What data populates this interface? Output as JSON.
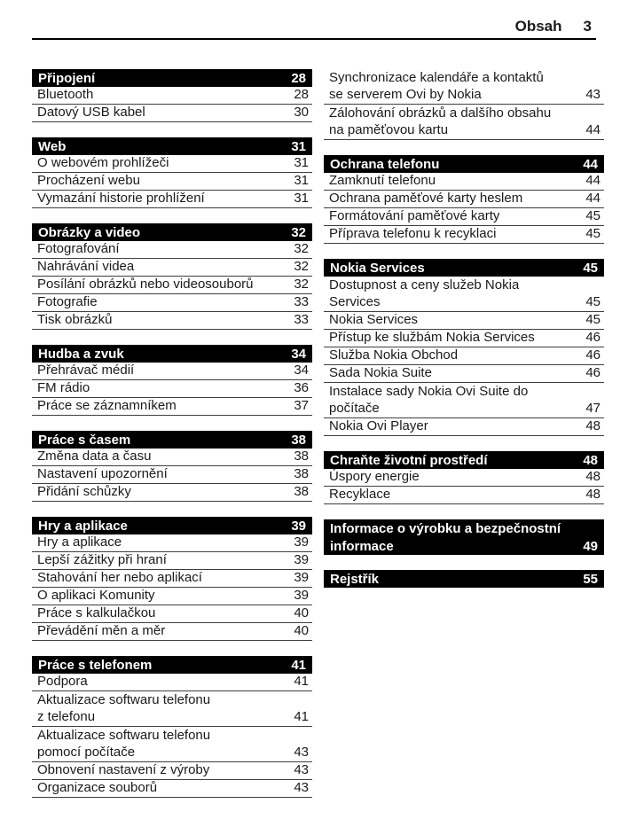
{
  "header": {
    "title": "Obsah",
    "page_number": "3"
  },
  "colors": {
    "bar_bg": "#000000",
    "bar_text": "#ffffff",
    "body_text": "#1a1a1a",
    "rule": "#3f3f3f"
  },
  "columns": [
    {
      "blocks": [
        {
          "title": "Připojení",
          "page": "28",
          "entries": [
            {
              "text": "Bluetooth",
              "page": "28"
            },
            {
              "text": "Datový USB kabel",
              "page": "30"
            }
          ]
        },
        {
          "title": "Web",
          "page": "31",
          "entries": [
            {
              "text": "O webovém prohlížeči",
              "page": "31"
            },
            {
              "text": "Procházení webu",
              "page": "31"
            },
            {
              "text": "Vymazání historie prohlížení",
              "page": "31"
            }
          ]
        },
        {
          "title": "Obrázky a video",
          "page": "32",
          "entries": [
            {
              "text": "Fotografování",
              "page": "32"
            },
            {
              "text": "Nahrávání videa",
              "page": "32"
            },
            {
              "text": "Posílání obrázků nebo videosouborů",
              "page": "32"
            },
            {
              "text": "Fotografie",
              "page": "33"
            },
            {
              "text": "Tisk obrázků",
              "page": "33"
            }
          ]
        },
        {
          "title": "Hudba a zvuk",
          "page": "34",
          "entries": [
            {
              "text": "Přehrávač médií",
              "page": "34"
            },
            {
              "text": "FM rádio",
              "page": "36"
            },
            {
              "text": "Práce se záznamníkem",
              "page": "37"
            }
          ]
        },
        {
          "title": "Práce s časem",
          "page": "38",
          "entries": [
            {
              "text": "Změna data a času",
              "page": "38"
            },
            {
              "text": "Nastavení upozornění",
              "page": "38"
            },
            {
              "text": "Přidání schůzky",
              "page": "38"
            }
          ]
        },
        {
          "title": "Hry a aplikace",
          "page": "39",
          "entries": [
            {
              "text": "Hry a aplikace",
              "page": "39"
            },
            {
              "text": "Lepší zážitky při hraní",
              "page": "39"
            },
            {
              "text": "Stahování her nebo aplikací",
              "page": "39"
            },
            {
              "text": "O aplikaci Komunity",
              "page": "39"
            },
            {
              "text": "Práce s kalkulačkou",
              "page": "40"
            },
            {
              "text": "Převádění měn a měr",
              "page": "40"
            }
          ]
        },
        {
          "title": "Práce s telefonem",
          "page": "41",
          "entries": [
            {
              "text": "Podpora",
              "page": "41"
            },
            {
              "text": "Aktualizace softwaru telefonu",
              "text2": "z telefonu",
              "page": "41"
            },
            {
              "text": "Aktualizace softwaru telefonu",
              "text2": "pomocí počítače",
              "page": "43"
            },
            {
              "text": "Obnovení nastavení z výroby",
              "page": "43"
            },
            {
              "text": "Organizace souborů",
              "page": "43"
            }
          ]
        }
      ]
    },
    {
      "blocks": [
        {
          "entries": [
            {
              "text": "Synchronizace kalendáře a kontaktů",
              "text2": "se serverem Ovi by Nokia",
              "page": "43"
            },
            {
              "text": "Zálohování obrázků a dalšího obsahu",
              "text2": "na paměťovou kartu",
              "page": "44"
            }
          ]
        },
        {
          "title": "Ochrana telefonu",
          "page": "44",
          "entries": [
            {
              "text": "Zamknutí telefonu",
              "page": "44"
            },
            {
              "text": "Ochrana paměťové karty heslem",
              "page": "44"
            },
            {
              "text": "Formátování paměťové karty",
              "page": "45"
            },
            {
              "text": "Příprava telefonu k recyklaci",
              "page": "45"
            }
          ]
        },
        {
          "title": "Nokia Services",
          "page": "45",
          "entries": [
            {
              "text": "Dostupnost a ceny služeb Nokia",
              "text2": "Services",
              "page": "45"
            },
            {
              "text": "Nokia Services",
              "page": "45"
            },
            {
              "text": "Přístup ke službám Nokia Services",
              "page": "46"
            },
            {
              "text": "Služba Nokia Obchod",
              "page": "46"
            },
            {
              "text": "Sada Nokia Suite",
              "page": "46"
            },
            {
              "text": "Instalace sady Nokia Ovi Suite do",
              "text2": "počítače",
              "page": "47"
            },
            {
              "text": "Nokia Ovi Player",
              "page": "48"
            }
          ]
        },
        {
          "title": "Chraňte životní prostředí",
          "page": "48",
          "entries": [
            {
              "text": "Úspory energie",
              "page": "48"
            },
            {
              "text": "Recyklace",
              "page": "48"
            }
          ]
        },
        {
          "title": "Informace o výrobku a bezpečnostní",
          "title2": "informace",
          "page": "49",
          "entries": []
        },
        {
          "title": "Rejstřík",
          "page": "55",
          "entries": []
        }
      ]
    }
  ]
}
